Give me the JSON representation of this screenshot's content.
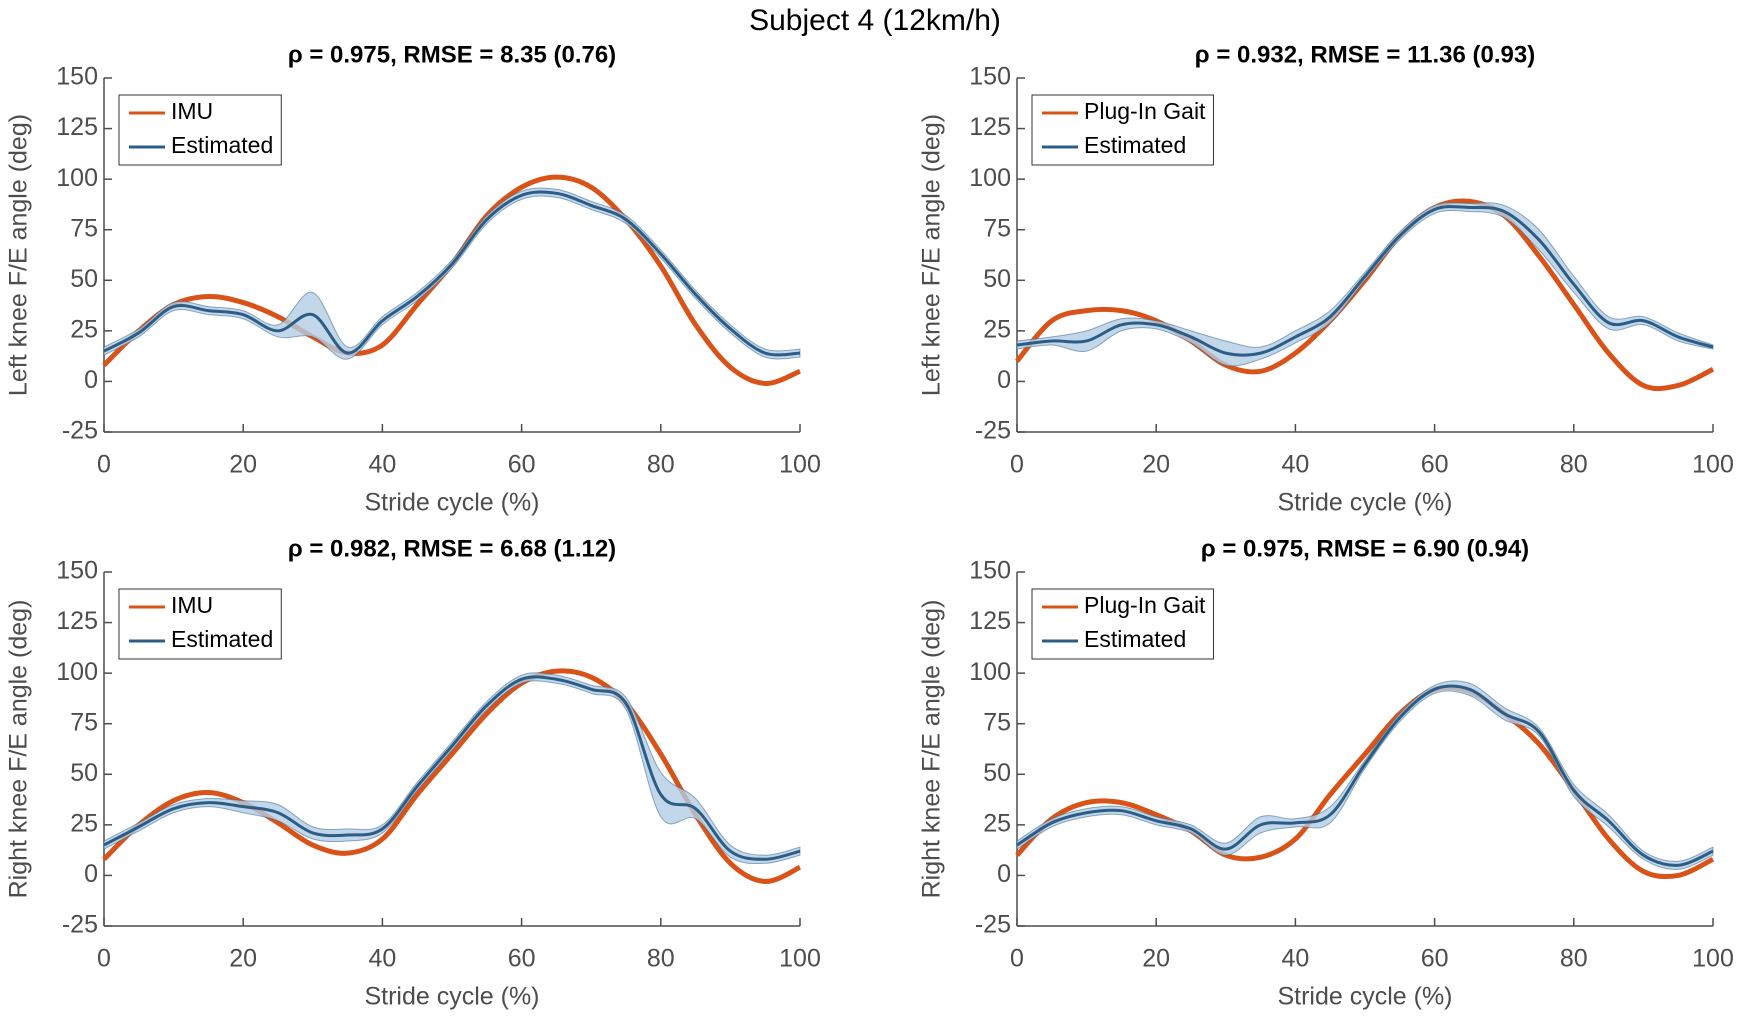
{
  "title": "Subject 4 (12km/h)",
  "chart_data": [
    {
      "type": "line",
      "title": "ρ = 0.975, RMSE = 8.35 (0.76)",
      "xlabel": "Stride cycle (%)",
      "ylabel": "Left knee F/E angle (deg)",
      "x": [
        0,
        5,
        10,
        15,
        20,
        25,
        30,
        35,
        40,
        45,
        50,
        55,
        60,
        65,
        70,
        75,
        80,
        85,
        90,
        95,
        100
      ],
      "xlim": [
        0,
        100
      ],
      "xticks": [
        0,
        20,
        40,
        60,
        80,
        100
      ],
      "ylim": [
        -25,
        150
      ],
      "yticks": [
        -25,
        0,
        25,
        50,
        75,
        100,
        125,
        150
      ],
      "legend": "northwest",
      "series": [
        {
          "name": "IMU",
          "color": "#d95319",
          "values": [
            8,
            25,
            38,
            42,
            39,
            32,
            22,
            14,
            18,
            38,
            58,
            82,
            96,
            101,
            96,
            80,
            57,
            28,
            7,
            -1,
            5
          ]
        },
        {
          "name": "Estimated",
          "color": "#2c5d86",
          "band_color": "#b3cde3",
          "values": [
            15,
            24,
            37,
            35,
            33,
            25,
            33,
            14,
            30,
            42,
            58,
            80,
            92,
            93,
            87,
            80,
            63,
            43,
            26,
            14,
            14
          ],
          "errors": [
            2,
            2,
            2,
            2,
            2,
            3,
            11,
            3,
            2,
            2,
            2,
            2,
            2,
            2,
            2,
            2,
            2,
            2,
            2,
            2,
            2
          ]
        }
      ]
    },
    {
      "type": "line",
      "title": "ρ = 0.932, RMSE = 11.36 (0.93)",
      "xlabel": "Stride cycle (%)",
      "ylabel": "Left knee F/E angle (deg)",
      "x": [
        0,
        5,
        10,
        15,
        20,
        25,
        30,
        35,
        40,
        45,
        50,
        55,
        60,
        65,
        70,
        75,
        80,
        85,
        90,
        95,
        100
      ],
      "xlim": [
        0,
        100
      ],
      "xticks": [
        0,
        20,
        40,
        60,
        80,
        100
      ],
      "ylim": [
        -25,
        150
      ],
      "yticks": [
        -25,
        0,
        25,
        50,
        75,
        100,
        125,
        150
      ],
      "legend": "northwest",
      "series": [
        {
          "name": "Plug-In Gait",
          "color": "#d95319",
          "values": [
            10,
            30,
            35,
            35,
            30,
            20,
            8,
            5,
            14,
            30,
            50,
            72,
            86,
            89,
            82,
            62,
            38,
            14,
            -2,
            -2,
            6
          ]
        },
        {
          "name": "Estimated",
          "color": "#2c5d86",
          "band_color": "#b3cde3",
          "values": [
            18,
            20,
            20,
            28,
            28,
            22,
            14,
            14,
            22,
            32,
            52,
            72,
            85,
            86,
            84,
            70,
            48,
            29,
            30,
            22,
            17
          ],
          "errors": [
            2,
            2,
            5,
            3,
            2,
            3,
            6,
            3,
            3,
            3,
            2,
            2,
            2,
            2,
            3,
            5,
            4,
            3,
            2,
            2,
            1
          ]
        }
      ]
    },
    {
      "type": "line",
      "title": "ρ = 0.982, RMSE = 6.68 (1.12)",
      "xlabel": "Stride cycle (%)",
      "ylabel": "Right knee F/E angle (deg)",
      "x": [
        0,
        5,
        10,
        15,
        20,
        25,
        30,
        35,
        40,
        45,
        50,
        55,
        60,
        65,
        70,
        75,
        80,
        85,
        90,
        95,
        100
      ],
      "xlim": [
        0,
        100
      ],
      "xticks": [
        0,
        20,
        40,
        60,
        80,
        100
      ],
      "ylim": [
        -25,
        150
      ],
      "yticks": [
        -25,
        0,
        25,
        50,
        75,
        100,
        125,
        150
      ],
      "legend": "northwest",
      "series": [
        {
          "name": "IMU",
          "color": "#d95319",
          "values": [
            8,
            25,
            37,
            41,
            36,
            26,
            15,
            11,
            18,
            40,
            60,
            80,
            95,
            101,
            98,
            85,
            60,
            30,
            6,
            -3,
            4
          ]
        },
        {
          "name": "Estimated",
          "color": "#2c5d86",
          "band_color": "#b3cde3",
          "values": [
            15,
            24,
            33,
            36,
            34,
            31,
            21,
            20,
            23,
            44,
            64,
            84,
            97,
            97,
            92,
            85,
            40,
            33,
            12,
            8,
            12
          ],
          "errors": [
            2,
            2,
            2,
            2,
            3,
            4,
            3,
            3,
            2,
            2,
            2,
            2,
            2,
            2,
            2,
            3,
            11,
            5,
            3,
            2,
            2
          ]
        }
      ]
    },
    {
      "type": "line",
      "title": "ρ = 0.975, RMSE = 6.90 (0.94)",
      "xlabel": "Stride cycle (%)",
      "ylabel": "Right knee F/E angle (deg)",
      "x": [
        0,
        5,
        10,
        15,
        20,
        25,
        30,
        35,
        40,
        45,
        50,
        55,
        60,
        65,
        70,
        75,
        80,
        85,
        90,
        95,
        100
      ],
      "xlim": [
        0,
        100
      ],
      "xticks": [
        0,
        20,
        40,
        60,
        80,
        100
      ],
      "ylim": [
        -25,
        150
      ],
      "yticks": [
        -25,
        0,
        25,
        50,
        75,
        100,
        125,
        150
      ],
      "legend": "northwest",
      "series": [
        {
          "name": "Plug-In Gait",
          "color": "#d95319",
          "values": [
            10,
            28,
            36,
            36,
            30,
            22,
            10,
            9,
            18,
            40,
            60,
            80,
            92,
            91,
            80,
            65,
            42,
            18,
            2,
            0,
            8
          ]
        },
        {
          "name": "Estimated",
          "color": "#2c5d86",
          "band_color": "#b3cde3",
          "values": [
            15,
            26,
            31,
            32,
            27,
            23,
            13,
            25,
            26,
            30,
            55,
            78,
            92,
            92,
            80,
            71,
            42,
            27,
            10,
            5,
            12
          ],
          "errors": [
            2,
            2,
            2,
            2,
            2,
            2,
            3,
            4,
            2,
            4,
            2,
            2,
            2,
            3,
            3,
            2,
            3,
            3,
            2,
            2,
            2
          ]
        }
      ]
    }
  ]
}
